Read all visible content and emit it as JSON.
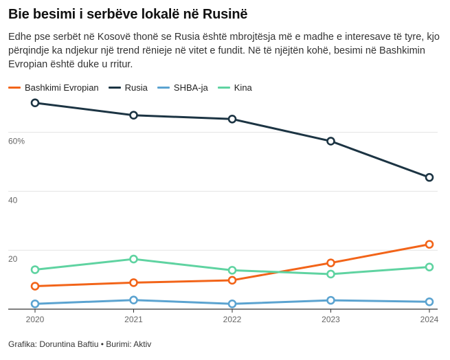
{
  "header": {
    "title": "Bie besimi i serbëve lokalë në Rusinë",
    "subtitle": "Edhe pse serbët në Kosovë thonë se Rusia është mbrojtësja më e madhe e interesave të tyre, kjo përqindje ka ndjekur një trend rënieje në vitet e fundit. Në të njëjtën kohë, besimi në Bashkimin Evropian është duke u rritur."
  },
  "footer": {
    "credit": "Grafika: Doruntina Baftiu • Burimi: Aktiv"
  },
  "chart_data": {
    "type": "line",
    "x": [
      "2020",
      "2021",
      "2022",
      "2023",
      "2024"
    ],
    "y_ticks": [
      {
        "value": 20,
        "label": "20"
      },
      {
        "value": 40,
        "label": "40"
      },
      {
        "value": 60,
        "label": "60%"
      }
    ],
    "ylim": [
      0,
      70
    ],
    "grid": true,
    "legend_position": "top-left",
    "series": [
      {
        "name": "Bashkimi Evropian",
        "color": "#f26419",
        "values": [
          7.8,
          9.0,
          9.8,
          15.7,
          22.0
        ]
      },
      {
        "name": "Rusia",
        "color": "#1c3443",
        "values": [
          70.0,
          65.8,
          64.5,
          57.0,
          44.7
        ]
      },
      {
        "name": "SHBA-ja",
        "color": "#5ba3d0",
        "values": [
          1.8,
          3.1,
          1.8,
          3.0,
          2.5
        ]
      },
      {
        "name": "Kina",
        "color": "#5fd3a1",
        "values": [
          13.4,
          17.0,
          13.2,
          11.9,
          14.3
        ]
      }
    ]
  }
}
